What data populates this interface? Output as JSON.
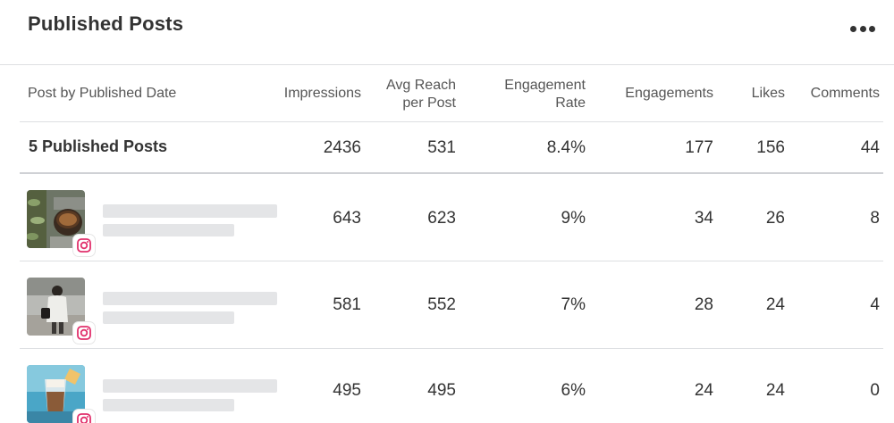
{
  "header": {
    "title": "Published Posts",
    "more_icon": "more-horizontal-icon"
  },
  "columns": {
    "post": "Post by Published Date",
    "impressions": "Impressions",
    "avg_reach_1": "Avg Reach",
    "avg_reach_2": "per Post",
    "engagement_rate_1": "Engagement",
    "engagement_rate_2": "Rate",
    "engagements": "Engagements",
    "likes": "Likes",
    "comments": "Comments"
  },
  "summary": {
    "label": "5 Published Posts",
    "impressions": "2436",
    "avg_reach": "531",
    "engagement_rate": "8.4%",
    "engagements": "177",
    "likes": "156",
    "comments": "44"
  },
  "posts": [
    {
      "platform_icon": "instagram-icon",
      "thumbnail": "coffee-cup-plant-photo",
      "impressions": "643",
      "avg_reach": "623",
      "engagement_rate": "9%",
      "engagements": "34",
      "likes": "26",
      "comments": "8"
    },
    {
      "platform_icon": "instagram-icon",
      "thumbnail": "woman-walking-photo",
      "impressions": "581",
      "avg_reach": "552",
      "engagement_rate": "7%",
      "engagements": "28",
      "likes": "24",
      "comments": "4"
    },
    {
      "platform_icon": "instagram-icon",
      "thumbnail": "iced-coffee-drink-photo",
      "impressions": "495",
      "avg_reach": "495",
      "engagement_rate": "6%",
      "engagements": "24",
      "likes": "24",
      "comments": "0"
    }
  ],
  "colors": {
    "instagram": "#e1306c",
    "skeleton": "#e4e5e7",
    "divider": "#dddfe2"
  }
}
